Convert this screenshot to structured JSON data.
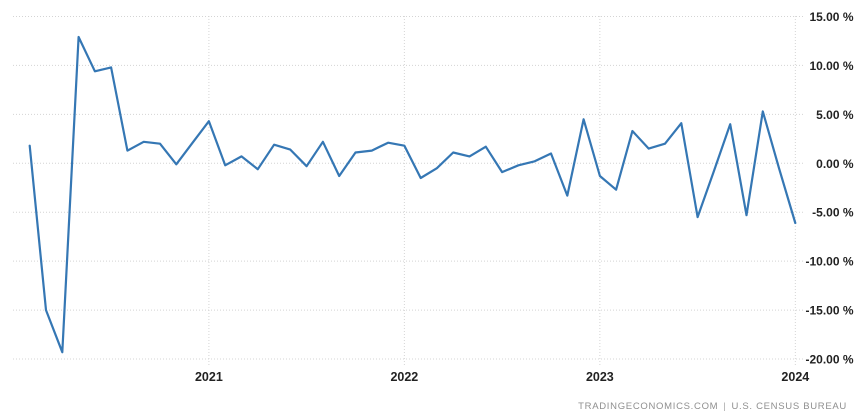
{
  "chart_data": {
    "type": "line",
    "title": "",
    "xlabel": "",
    "ylabel": "",
    "legend": "none",
    "grid": true,
    "ylim": [
      -20,
      15
    ],
    "x": [
      "2020-02",
      "2020-03",
      "2020-04",
      "2020-05",
      "2020-06",
      "2020-07",
      "2020-08",
      "2020-09",
      "2020-10",
      "2020-11",
      "2020-12",
      "2021-01",
      "2021-02",
      "2021-03",
      "2021-04",
      "2021-05",
      "2021-06",
      "2021-07",
      "2021-08",
      "2021-09",
      "2021-10",
      "2021-11",
      "2021-12",
      "2022-01",
      "2022-02",
      "2022-03",
      "2022-04",
      "2022-05",
      "2022-06",
      "2022-07",
      "2022-08",
      "2022-09",
      "2022-10",
      "2022-11",
      "2022-12",
      "2023-01",
      "2023-02",
      "2023-03",
      "2023-04",
      "2023-05",
      "2023-06",
      "2023-07",
      "2023-08",
      "2023-09",
      "2023-10",
      "2023-11",
      "2023-12",
      "2024-01"
    ],
    "values": [
      1.8,
      -15.0,
      -19.3,
      12.9,
      9.4,
      9.8,
      1.3,
      2.2,
      2.0,
      -0.1,
      2.1,
      4.3,
      -0.2,
      0.7,
      -0.6,
      1.9,
      1.4,
      -0.3,
      2.2,
      -1.3,
      1.1,
      1.3,
      2.1,
      1.8,
      -1.5,
      -0.5,
      1.1,
      0.7,
      1.7,
      -0.9,
      -0.2,
      0.2,
      1.0,
      -3.3,
      4.5,
      -1.3,
      -2.7,
      3.3,
      1.5,
      2.0,
      4.1,
      -5.5,
      -0.8,
      4.0,
      -5.3,
      5.3,
      -0.5,
      -6.1
    ],
    "y_axis": {
      "unit": "%",
      "ticks": [
        {
          "value": 15,
          "label": "15.00 %"
        },
        {
          "value": 10,
          "label": "10.00 %"
        },
        {
          "value": 5,
          "label": "5.00 %"
        },
        {
          "value": 0,
          "label": "0.00 %"
        },
        {
          "value": -5,
          "label": "-5.00 %"
        },
        {
          "value": -10,
          "label": "-10.00 %"
        },
        {
          "value": -15,
          "label": "-15.00 %"
        },
        {
          "value": -20,
          "label": "-20.00 %"
        }
      ]
    },
    "x_axis": {
      "year_ticks": [
        {
          "label": "2021",
          "month_index": 11
        },
        {
          "label": "2022",
          "month_index": 23
        },
        {
          "label": "2023",
          "month_index": 35
        },
        {
          "label": "2024",
          "month_index": 47
        }
      ]
    }
  },
  "colors": {
    "line": "#3577b4",
    "grid": "#d4d4d4",
    "tick_text": "#222222",
    "attribution_text": "#8f8f8f",
    "background": "#ffffff"
  },
  "attribution": {
    "site": "TRADINGECONOMICS.COM",
    "divider": "|",
    "org": "U.S. CENSUS BUREAU"
  }
}
